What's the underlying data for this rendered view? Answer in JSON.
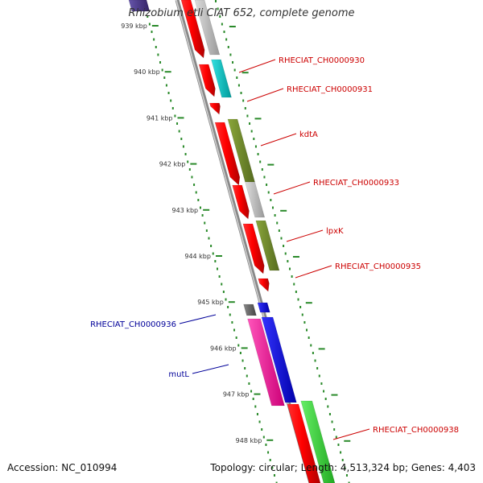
{
  "title": "Rhizobium etli CIAT 652, complete genome",
  "accession_text": "Accession: NC_010994",
  "summary_text": "Topology: circular; Length: 4,513,324 bp; Genes: 4,403",
  "colors": {
    "backbone": "#999999",
    "ticks_major": "#2a8a2a",
    "forward_label": "#cc0000",
    "reverse_label": "#000099"
  },
  "ticks": [
    {
      "label": "939 kbp"
    },
    {
      "label": "940 kbp"
    },
    {
      "label": "941 kbp"
    },
    {
      "label": "942 kbp"
    },
    {
      "label": "943 kbp"
    },
    {
      "label": "944 kbp"
    },
    {
      "label": "945 kbp"
    },
    {
      "label": "946 kbp"
    },
    {
      "label": "947 kbp"
    },
    {
      "label": "948 kbp"
    }
  ],
  "gene_labels": [
    {
      "text": "RHECIAT_CH0000930",
      "strand": "forward"
    },
    {
      "text": "RHECIAT_CH0000931",
      "strand": "forward"
    },
    {
      "text": "kdtA",
      "strand": "forward"
    },
    {
      "text": "RHECIAT_CH0000933",
      "strand": "forward"
    },
    {
      "text": "lpxK",
      "strand": "forward"
    },
    {
      "text": "RHECIAT_CH0000935",
      "strand": "forward"
    },
    {
      "text": "RHECIAT_CH0000936",
      "strand": "reverse"
    },
    {
      "text": "mutL",
      "strand": "reverse"
    },
    {
      "text": "RHECIAT_CH0000938",
      "strand": "forward"
    }
  ]
}
